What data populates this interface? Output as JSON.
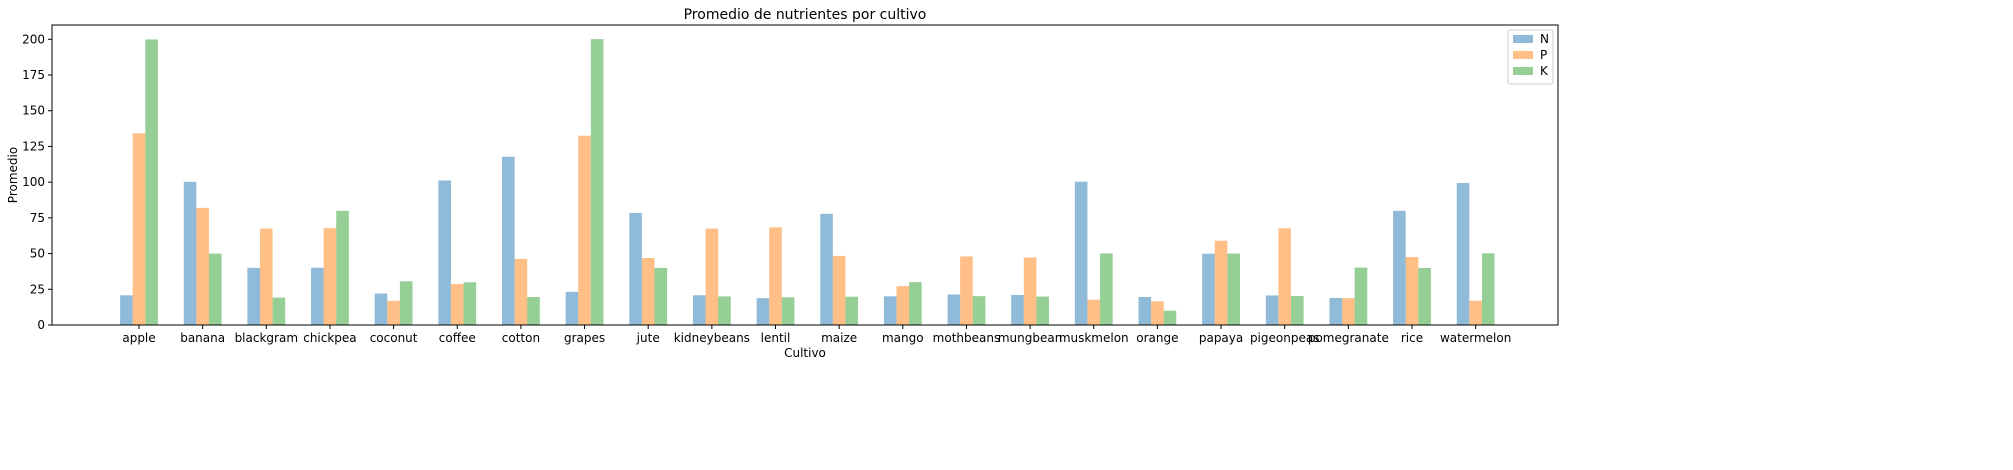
{
  "chart_data": {
    "type": "bar",
    "title": "Promedio de nutrientes por cultivo",
    "xlabel": "Cultivo",
    "ylabel": "Promedio",
    "ylim": [
      0,
      210
    ],
    "yticks": [
      0,
      25,
      50,
      75,
      100,
      125,
      150,
      175,
      200
    ],
    "grid": false,
    "legend_position": "top-right",
    "categories": [
      "apple",
      "banana",
      "blackgram",
      "chickpea",
      "coconut",
      "coffee",
      "cotton",
      "grapes",
      "jute",
      "kidneybeans",
      "lentil",
      "maize",
      "mango",
      "mothbeans",
      "mungbean",
      "muskmelon",
      "orange",
      "papaya",
      "pigeonpeas",
      "pomegranate",
      "rice",
      "watermelon"
    ],
    "series": [
      {
        "name": "N",
        "color": "#1f77b4",
        "values": [
          20.8,
          100.2,
          40.0,
          40.1,
          22.0,
          101.2,
          117.8,
          23.2,
          78.4,
          20.8,
          18.8,
          77.8,
          20.1,
          21.4,
          21.0,
          100.3,
          19.6,
          49.9,
          20.7,
          18.9,
          79.9,
          99.4
        ]
      },
      {
        "name": "P",
        "color": "#ff7f0e",
        "values": [
          134.2,
          82.0,
          67.5,
          67.8,
          16.9,
          28.7,
          46.2,
          132.5,
          46.9,
          67.5,
          68.4,
          48.4,
          27.2,
          48.0,
          47.3,
          17.7,
          16.6,
          59.0,
          67.7,
          18.8,
          47.6,
          17.0
        ]
      },
      {
        "name": "K",
        "color": "#2ca02c",
        "values": [
          199.9,
          50.0,
          19.2,
          79.9,
          30.6,
          29.9,
          19.6,
          200.1,
          40.0,
          20.0,
          19.4,
          19.8,
          30.0,
          20.2,
          19.9,
          50.1,
          10.0,
          50.0,
          20.3,
          40.2,
          39.9,
          50.2
        ]
      }
    ]
  }
}
